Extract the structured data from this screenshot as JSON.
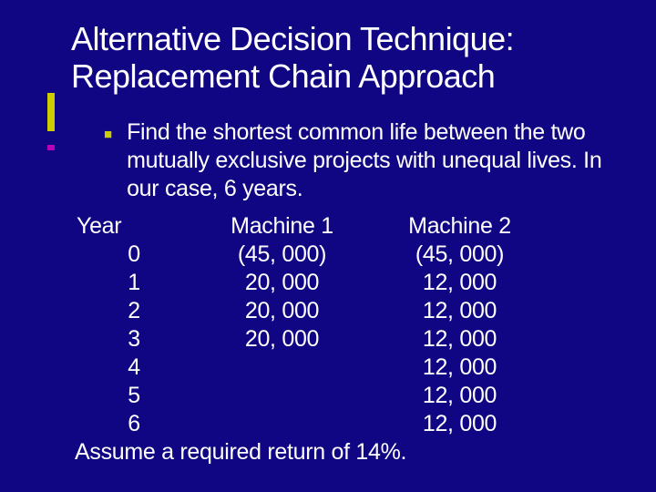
{
  "colors": {
    "background": "#100582",
    "text": "#ffffff",
    "accent_yellow": "#cccc00",
    "accent_magenta": "#b800b8"
  },
  "typography": {
    "title_fontsize": 36,
    "body_fontsize": 25,
    "font_family": "Verdana"
  },
  "title_line1": "Alternative Decision Technique:",
  "title_line2": "Replacement Chain Approach",
  "bullet_text": "Find the shortest common life between the two mutually exclusive projects with unequal lives. In our case, 6 years.",
  "table": {
    "headers": {
      "year": "Year",
      "m1": "Machine 1",
      "m2": "Machine 2"
    },
    "rows": [
      {
        "year": "0",
        "m1": "(45, 000)",
        "m2": "(45, 000)"
      },
      {
        "year": "1",
        "m1": "20, 000",
        "m2": "12, 000"
      },
      {
        "year": "2",
        "m1": "20, 000",
        "m2": "12, 000"
      },
      {
        "year": "3",
        "m1": "20, 000",
        "m2": "12, 000"
      },
      {
        "year": "4",
        "m1": "",
        "m2": "12, 000"
      },
      {
        "year": "5",
        "m1": "",
        "m2": "12, 000"
      },
      {
        "year": "6",
        "m1": "",
        "m2": "12, 000"
      }
    ]
  },
  "footer": "Assume a required return of 14%."
}
